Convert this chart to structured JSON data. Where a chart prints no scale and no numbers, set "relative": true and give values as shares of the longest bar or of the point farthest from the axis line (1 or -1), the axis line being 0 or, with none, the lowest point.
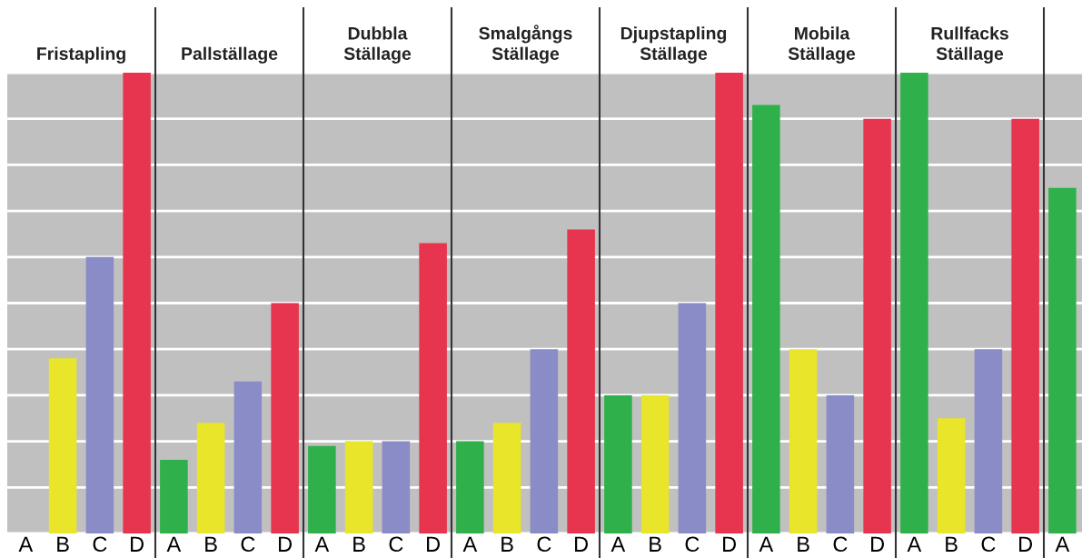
{
  "chart_data": {
    "type": "bar",
    "relative": true,
    "grid": "y",
    "categories": [
      "A",
      "B",
      "C",
      "D",
      "A",
      "B",
      "C",
      "D",
      "A",
      "B",
      "C",
      "D",
      "A",
      "B",
      "C",
      "D",
      "A",
      "B",
      "C",
      "D",
      "A",
      "B",
      "C",
      "D",
      "A",
      "B",
      "C",
      "D",
      "A"
    ],
    "values": [
      0,
      0.38,
      0.6,
      1.0,
      0.16,
      0.24,
      0.33,
      0.5,
      0.19,
      0.2,
      0.2,
      0.63,
      0.2,
      0.24,
      0.4,
      0.66,
      0.3,
      0.3,
      0.5,
      1.0,
      0.93,
      0.4,
      0.3,
      0.9,
      1.0,
      0.25,
      0.4,
      0.9,
      0.75
    ],
    "colors": [
      "#2fb04a",
      "#e8e52a",
      "#8a8cc8",
      "#e8354f",
      "#2fb04a",
      "#e8e52a",
      "#8a8cc8",
      "#e8354f",
      "#2fb04a",
      "#e8e52a",
      "#8a8cc8",
      "#e8354f",
      "#2fb04a",
      "#e8e52a",
      "#8a8cc8",
      "#e8354f",
      "#2fb04a",
      "#e8e52a",
      "#8a8cc8",
      "#e8354f",
      "#2fb04a",
      "#e8e52a",
      "#8a8cc8",
      "#e8354f",
      "#2fb04a",
      "#e8e52a",
      "#8a8cc8",
      "#e8354f",
      "#2fb04a"
    ],
    "annotations": [
      "Fristapling",
      "Pallställage",
      "Dubbla\nStällage",
      "Smalgångs\nStällage",
      "Djupstapling\nStällage",
      "Mobila\nStällage",
      "Rullfacks\nStällage"
    ]
  }
}
